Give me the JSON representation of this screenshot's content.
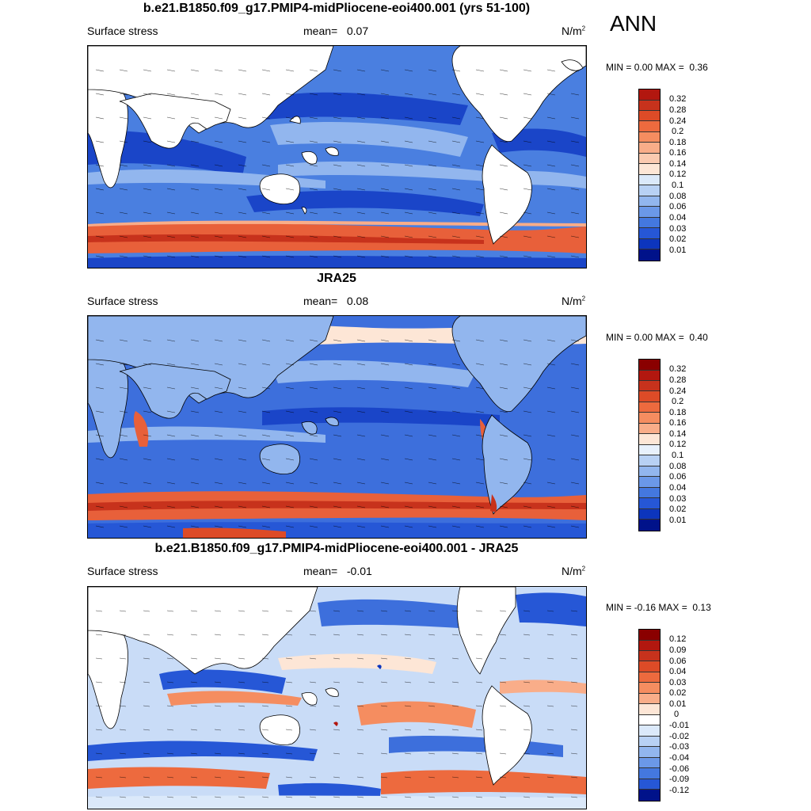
{
  "season": "ANN",
  "panels": [
    {
      "title": "b.e21.B1850.f09_g17.PMIP4-midPliocene-eoi400.001 (yrs 51-100)",
      "variable": "Surface stress",
      "mean_label": "mean=",
      "mean_value": "0.07",
      "units_base": "N/m",
      "units_exp": "2",
      "min_label": "MIN =",
      "min_value": "0.00",
      "max_label": "MAX =",
      "max_value": "0.36",
      "colorbar_labels": [
        "0.32",
        "0.28",
        "0.24",
        "0.2",
        "0.18",
        "0.16",
        "0.14",
        "0.12",
        "0.1",
        "0.08",
        "0.06",
        "0.04",
        "0.03",
        "0.02",
        "0.01"
      ],
      "colors": [
        "#b2170f",
        "#c7321c",
        "#dd4b27",
        "#ed6a3e",
        "#f58d60",
        "#f9ad89",
        "#fbcab0",
        "#fde6d6",
        "#dbe9fa",
        "#b8d1f4",
        "#92b6ee",
        "#6b98e8",
        "#4478df",
        "#2657d6",
        "#0c35bd",
        "#00128a"
      ]
    },
    {
      "title": "JRA25",
      "variable": "Surface stress",
      "mean_label": "mean=",
      "mean_value": "0.08",
      "units_base": "N/m",
      "units_exp": "2",
      "min_label": "MIN =",
      "min_value": "0.00",
      "max_label": "MAX =",
      "max_value": "0.40",
      "colorbar_labels": [
        "0.32",
        "0.28",
        "0.24",
        "0.2",
        "0.18",
        "0.16",
        "0.14",
        "0.12",
        "0.1",
        "0.08",
        "0.06",
        "0.04",
        "0.03",
        "0.02",
        "0.01"
      ],
      "colors": [
        "#8a0000",
        "#b2170f",
        "#c7321c",
        "#dd4b27",
        "#ed6a3e",
        "#f58d60",
        "#f9ad89",
        "#fde6d6",
        "#e8f1fc",
        "#b8d1f4",
        "#92b6ee",
        "#6b98e8",
        "#4478df",
        "#2657d6",
        "#0c35bd",
        "#00128a"
      ]
    },
    {
      "title": "b.e21.B1850.f09_g17.PMIP4-midPliocene-eoi400.001 - JRA25",
      "variable": "Surface stress",
      "mean_label": "mean=",
      "mean_value": "-0.01",
      "units_base": "N/m",
      "units_exp": "2",
      "min_label": "MIN =",
      "min_value": "-0.16",
      "max_label": "MAX =",
      "max_value": "0.13",
      "colorbar_labels": [
        "0.12",
        "0.09",
        "0.06",
        "0.04",
        "0.03",
        "0.02",
        "0.01",
        "0",
        "-0.01",
        "-0.02",
        "-0.03",
        "-0.04",
        "-0.06",
        "-0.09",
        "-0.12"
      ],
      "colors": [
        "#8a0000",
        "#b2170f",
        "#c7321c",
        "#dd4b27",
        "#ed6a3e",
        "#f58d60",
        "#f9ad89",
        "#fde6d6",
        "#ffffff",
        "#dbe9fa",
        "#b8d1f4",
        "#92b6ee",
        "#6b98e8",
        "#4478df",
        "#2657d6",
        "#00128a"
      ]
    }
  ],
  "fill_colors": {
    "land": "#ffffff",
    "ocean_base": "#4a7fe0",
    "ocean_strong": "#1a45c8",
    "ocean_weak": "#92b6ee",
    "westerlies": "#e8603a",
    "diff_base": "#c9dcf7"
  }
}
